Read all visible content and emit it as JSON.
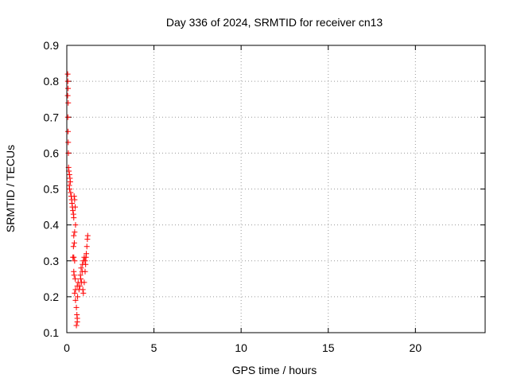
{
  "chart_data": {
    "type": "scatter",
    "title": "Day 336 of 2024, SRMTID for receiver cn13",
    "xlabel": "GPS time / hours",
    "ylabel": "SRMTID / TECUs",
    "xlim": [
      0,
      24
    ],
    "ylim": [
      0.1,
      0.9
    ],
    "xticks": [
      0,
      5,
      10,
      15,
      20
    ],
    "xtick_labels": [
      "0",
      "5",
      "10",
      "15",
      "20"
    ],
    "yticks": [
      0.1,
      0.2,
      0.3,
      0.4,
      0.5,
      0.6,
      0.7,
      0.8,
      0.9
    ],
    "ytick_labels": [
      "0.1",
      "0.2",
      "0.3",
      "0.4",
      "0.5",
      "0.6",
      "0.7",
      "0.8",
      "0.9"
    ],
    "grid": true,
    "marker": "+",
    "color": "#ff0000",
    "series": [
      {
        "points": [
          [
            0.05,
            0.82
          ],
          [
            0.06,
            0.8
          ],
          [
            0.07,
            0.78
          ],
          [
            0.05,
            0.76
          ],
          [
            0.08,
            0.74
          ],
          [
            0.06,
            0.7
          ],
          [
            0.07,
            0.66
          ],
          [
            0.08,
            0.63
          ],
          [
            0.09,
            0.6
          ],
          [
            0.1,
            0.56
          ],
          [
            0.12,
            0.55
          ],
          [
            0.15,
            0.54
          ],
          [
            0.18,
            0.53
          ],
          [
            0.2,
            0.52
          ],
          [
            0.14,
            0.51
          ],
          [
            0.16,
            0.5
          ],
          [
            0.22,
            0.49
          ],
          [
            0.25,
            0.48
          ],
          [
            0.28,
            0.47
          ],
          [
            0.3,
            0.46
          ],
          [
            0.32,
            0.45
          ],
          [
            0.35,
            0.44
          ],
          [
            0.38,
            0.43
          ],
          [
            0.4,
            0.42
          ],
          [
            0.42,
            0.48
          ],
          [
            0.45,
            0.47
          ],
          [
            0.48,
            0.45
          ],
          [
            0.5,
            0.4
          ],
          [
            0.45,
            0.38
          ],
          [
            0.4,
            0.37
          ],
          [
            0.43,
            0.35
          ],
          [
            0.38,
            0.34
          ],
          [
            0.35,
            0.31
          ],
          [
            0.4,
            0.31
          ],
          [
            0.45,
            0.3
          ],
          [
            0.4,
            0.27
          ],
          [
            0.42,
            0.26
          ],
          [
            0.48,
            0.25
          ],
          [
            0.5,
            0.22
          ],
          [
            0.45,
            0.21
          ],
          [
            0.5,
            0.19
          ],
          [
            0.55,
            0.17
          ],
          [
            0.58,
            0.15
          ],
          [
            0.6,
            0.14
          ],
          [
            0.55,
            0.12
          ],
          [
            0.6,
            0.13
          ],
          [
            0.62,
            0.2
          ],
          [
            0.6,
            0.23
          ],
          [
            0.65,
            0.24
          ],
          [
            0.7,
            0.22
          ],
          [
            0.75,
            0.23
          ],
          [
            0.8,
            0.25
          ],
          [
            0.85,
            0.24
          ],
          [
            0.78,
            0.26
          ],
          [
            0.82,
            0.28
          ],
          [
            0.88,
            0.27
          ],
          [
            0.9,
            0.29
          ],
          [
            0.95,
            0.3
          ],
          [
            1.0,
            0.31
          ],
          [
            1.05,
            0.3
          ],
          [
            1.1,
            0.31
          ],
          [
            0.92,
            0.22
          ],
          [
            0.95,
            0.21
          ],
          [
            1.0,
            0.24
          ],
          [
            1.05,
            0.27
          ],
          [
            1.08,
            0.29
          ],
          [
            1.12,
            0.32
          ],
          [
            1.15,
            0.34
          ],
          [
            1.18,
            0.36
          ],
          [
            1.2,
            0.37
          ]
        ]
      }
    ]
  }
}
